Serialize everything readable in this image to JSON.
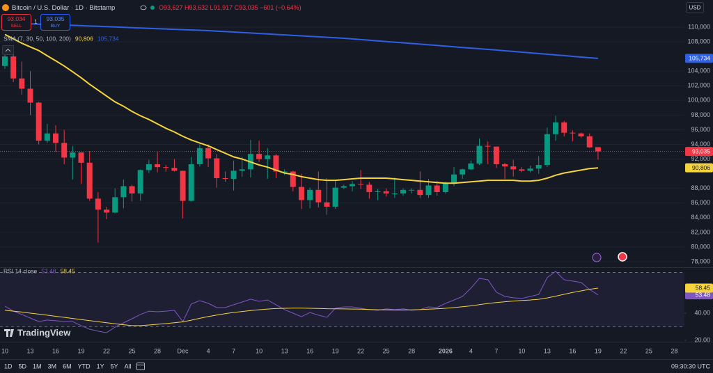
{
  "chart_data": [
    {
      "type": "candlestick",
      "title": "Bitcoin / U.S. Dollar · 1D · Bitstamp",
      "ohlc_label": "O93,627 H93,632 L91,917 C93,035 −601 (−0.64%)",
      "indicator_label": "SMA (7, 30, 50, 100, 200)",
      "last_price_label": "93,035",
      "up_color": "#089981",
      "down_color": "#f23645",
      "categories": [
        "10",
        null,
        null,
        "13",
        null,
        null,
        "16",
        null,
        null,
        "19",
        null,
        null,
        "22",
        null,
        null,
        "25",
        null,
        null,
        "28",
        null,
        null,
        "Dec",
        null,
        null,
        "4",
        null,
        null,
        "7",
        null,
        null,
        "10",
        null,
        null,
        "13",
        null,
        null,
        "16",
        null,
        null,
        "19",
        null,
        null,
        "22",
        null,
        null,
        "25",
        null,
        null,
        "28",
        null,
        null,
        null,
        "2026",
        null,
        null,
        "4",
        null,
        null,
        "7",
        null,
        null,
        "10",
        null,
        null,
        "13",
        null,
        null,
        "16",
        null,
        null,
        "19",
        null,
        null,
        "22",
        null,
        null,
        "25",
        null,
        null,
        "28"
      ],
      "open": [
        104700,
        106000,
        103000,
        101600,
        99700,
        94500,
        95500,
        94200,
        92200,
        92900,
        91500,
        86600,
        85100,
        84700,
        86800,
        88300,
        87300,
        90500,
        91300,
        90900,
        90800,
        90400,
        86300,
        91300,
        93500,
        92100,
        89400,
        89300,
        90400,
        90600,
        92700,
        92000,
        92500,
        90300,
        90300,
        88200,
        86400,
        87800,
        86100,
        85500,
        88100,
        88300,
        88600,
        88500,
        87500,
        87600,
        87300,
        87300,
        87800,
        87800,
        87100,
        88400,
        87500,
        88700,
        89900,
        90600,
        91400,
        93800,
        93700,
        91300,
        91000,
        90600,
        90400,
        90700,
        91200,
        95400,
        97000,
        95600,
        95500,
        95100,
        93627,
        null,
        null,
        null,
        null,
        null,
        null,
        null,
        null,
        null
      ],
      "high": [
        106600,
        107500,
        105300,
        104000,
        99800,
        96800,
        96600,
        96000,
        93800,
        92900,
        93100,
        87500,
        85500,
        88000,
        89200,
        88500,
        90600,
        91900,
        93000,
        91200,
        92000,
        90400,
        92300,
        94100,
        94000,
        92700,
        90300,
        91800,
        92300,
        94600,
        94500,
        93500,
        92700,
        90600,
        90400,
        90000,
        88100,
        90300,
        89400,
        89000,
        88500,
        89000,
        90500,
        88900,
        87900,
        88000,
        89500,
        88000,
        88000,
        90300,
        89300,
        89000,
        88900,
        90900,
        90700,
        91800,
        94800,
        94400,
        93700,
        91500,
        91900,
        90900,
        91100,
        92400,
        96300,
        97900,
        97200,
        95900,
        95600,
        95500,
        93632,
        null,
        null,
        null,
        null,
        null,
        null,
        null,
        null,
        null
      ],
      "low": [
        104300,
        102500,
        100800,
        98000,
        94000,
        94200,
        93000,
        91300,
        89200,
        88600,
        86300,
        80600,
        83800,
        84600,
        85300,
        86200,
        86300,
        90100,
        90200,
        90300,
        90300,
        83900,
        86200,
        91000,
        90900,
        88100,
        88900,
        87700,
        89600,
        89500,
        91600,
        89300,
        89400,
        89800,
        87600,
        85200,
        85300,
        85400,
        84400,
        85200,
        87900,
        87600,
        87900,
        86600,
        86400,
        86900,
        86700,
        87000,
        87300,
        86700,
        86700,
        87000,
        87300,
        88300,
        89300,
        90500,
        91200,
        91300,
        90800,
        89300,
        89600,
        90200,
        90200,
        90000,
        90900,
        94500,
        95100,
        94400,
        94900,
        93500,
        91917,
        null,
        null,
        null,
        null,
        null,
        null,
        null,
        null,
        null
      ],
      "close": [
        106000,
        103000,
        101600,
        99700,
        94500,
        95500,
        94200,
        92200,
        92900,
        91500,
        86600,
        85100,
        84700,
        86800,
        88300,
        87300,
        90500,
        91300,
        90900,
        90800,
        90400,
        86300,
        91300,
        93500,
        92100,
        89400,
        89300,
        90400,
        90600,
        92700,
        92000,
        92500,
        90300,
        90300,
        88200,
        86400,
        87800,
        86100,
        85500,
        88100,
        88300,
        88600,
        88500,
        87500,
        87600,
        87300,
        87300,
        87800,
        87800,
        87100,
        88400,
        87500,
        88700,
        89900,
        90600,
        91400,
        93800,
        93700,
        91300,
        91000,
        90600,
        90400,
        90700,
        91200,
        95400,
        97000,
        95600,
        95500,
        95100,
        93600,
        93035,
        null,
        null,
        null,
        null,
        null,
        null,
        null,
        null,
        null
      ],
      "overlays": [
        {
          "color": "#f5d33d",
          "label": "90,806",
          "values": [
            109000,
            108400,
            107800,
            107300,
            106800,
            106100,
            105400,
            104700,
            103900,
            103100,
            102200,
            101400,
            100600,
            99800,
            99200,
            98500,
            97900,
            97400,
            96800,
            96200,
            95700,
            95100,
            94600,
            94200,
            93800,
            93300,
            92800,
            92300,
            92000,
            91600,
            91200,
            90900,
            90500,
            90100,
            89900,
            89600,
            89400,
            89200,
            89100,
            89100,
            89200,
            89300,
            89400,
            89400,
            89400,
            89400,
            89300,
            89200,
            89100,
            89000,
            88900,
            88800,
            88700,
            88700,
            88800,
            88900,
            89000,
            89100,
            89100,
            89100,
            89100,
            89000,
            89000,
            89100,
            89400,
            89800,
            90100,
            90300,
            90500,
            90700,
            90806,
            null,
            null,
            null,
            null,
            null,
            null,
            null,
            null,
            null
          ]
        },
        {
          "color": "#2f5fe3",
          "label": "105,734",
          "values": [
            110500,
            110480,
            110460,
            110440,
            110410,
            110380,
            110330,
            110290,
            110240,
            110200,
            110150,
            110110,
            110060,
            110020,
            109970,
            109930,
            109880,
            109840,
            109790,
            109750,
            109700,
            109660,
            109610,
            109570,
            109520,
            109460,
            109390,
            109330,
            109260,
            109200,
            109130,
            109070,
            109000,
            108940,
            108870,
            108810,
            108740,
            108680,
            108610,
            108550,
            108480,
            108390,
            108300,
            108210,
            108120,
            108030,
            107950,
            107860,
            107770,
            107680,
            107590,
            107500,
            107410,
            107320,
            107230,
            107140,
            107050,
            106960,
            106870,
            106770,
            106680,
            106580,
            106490,
            106390,
            106300,
            106200,
            106110,
            106010,
            105920,
            105820,
            105734,
            null,
            null,
            null,
            null,
            null,
            null,
            null,
            null,
            null
          ]
        }
      ],
      "ylim": [
        77340,
        113700
      ],
      "yticks": [
        {
          "value": 78000,
          "label": "78,000"
        },
        {
          "value": 80000,
          "label": "80,000"
        },
        {
          "value": 82000,
          "label": "82,000"
        },
        {
          "value": 84000,
          "label": "84,000"
        },
        {
          "value": 86000,
          "label": "86,000"
        },
        {
          "value": 88000,
          "label": "88,000"
        },
        {
          "value": 92000,
          "label": "92,000"
        },
        {
          "value": 94000,
          "label": "94,000"
        },
        {
          "value": 96000,
          "label": "96,000"
        },
        {
          "value": 98000,
          "label": "98,000"
        },
        {
          "value": 100000,
          "label": "100,000"
        },
        {
          "value": 102000,
          "label": "102,000"
        },
        {
          "value": 104000,
          "label": "104,000"
        },
        {
          "value": 108000,
          "label": "108,000"
        },
        {
          "value": 110000,
          "label": "110,000"
        }
      ],
      "grid": true
    },
    {
      "type": "line",
      "title": "RSI 14 close",
      "series": [
        {
          "color": "#7e57c2",
          "label": "53.48",
          "values": [
            45.1,
            41.5,
            39.0,
            36.4,
            33.8,
            34.9,
            34.4,
            33.8,
            33.8,
            30.8,
            28.2,
            26.7,
            25.6,
            29.7,
            32.8,
            35.9,
            39.0,
            41.5,
            41.0,
            41.5,
            42.1,
            33.8,
            46.7,
            49.2,
            47.2,
            44.1,
            44.1,
            46.2,
            48.2,
            50.3,
            48.7,
            49.7,
            46.2,
            42.6,
            40.0,
            37.4,
            40.5,
            38.5,
            36.9,
            43.6,
            44.6,
            44.6,
            43.6,
            42.6,
            42.1,
            43.1,
            42.6,
            43.1,
            42.1,
            42.6,
            44.6,
            44.1,
            47.2,
            49.7,
            52.3,
            58.5,
            65.6,
            64.6,
            55.4,
            52.3,
            51.3,
            50.8,
            52.3,
            53.8,
            66.2,
            70.8,
            64.6,
            63.6,
            62.6,
            57.4,
            53.48,
            null,
            null,
            null,
            null,
            null,
            null,
            null,
            null,
            null
          ]
        },
        {
          "color": "#f5d33d",
          "label": "58.45",
          "values": [
            42.1,
            41.5,
            40.8,
            40.0,
            39.3,
            38.5,
            37.7,
            36.9,
            36.1,
            35.3,
            34.5,
            33.7,
            32.9,
            32.2,
            31.5,
            30.8,
            30.8,
            31.3,
            31.8,
            32.3,
            32.9,
            33.6,
            34.8,
            36.2,
            37.5,
            38.6,
            39.6,
            40.5,
            41.2,
            41.9,
            42.5,
            43.0,
            43.4,
            43.6,
            43.7,
            43.7,
            43.6,
            43.5,
            43.3,
            43.2,
            43.1,
            43.0,
            42.9,
            42.7,
            42.5,
            42.4,
            42.3,
            42.3,
            42.4,
            42.6,
            42.9,
            43.2,
            43.6,
            44.1,
            44.7,
            45.4,
            46.3,
            47.1,
            47.8,
            48.4,
            48.9,
            49.3,
            49.7,
            50.2,
            51.2,
            52.5,
            53.9,
            55.2,
            56.4,
            57.5,
            58.45,
            null,
            null,
            null,
            null,
            null,
            null,
            null,
            null,
            null
          ]
        }
      ],
      "bands": [
        30,
        70
      ],
      "ylim": [
        19.5,
        73.3
      ],
      "yticks": [
        {
          "value": 20,
          "label": "20.00"
        },
        {
          "value": 40,
          "label": "40.00"
        }
      ]
    }
  ],
  "trade": {
    "sell_price": "93,034",
    "sell": "SELL",
    "quantity": "1",
    "buy_price": "93,035",
    "buy": "BUY"
  },
  "currency": "USD",
  "watermark": "TradingView",
  "toolbar": {
    "ranges": [
      "1D",
      "5D",
      "1M",
      "3M",
      "6M",
      "YTD",
      "1Y",
      "5Y",
      "All"
    ],
    "time": "09:30:30 UTC"
  }
}
